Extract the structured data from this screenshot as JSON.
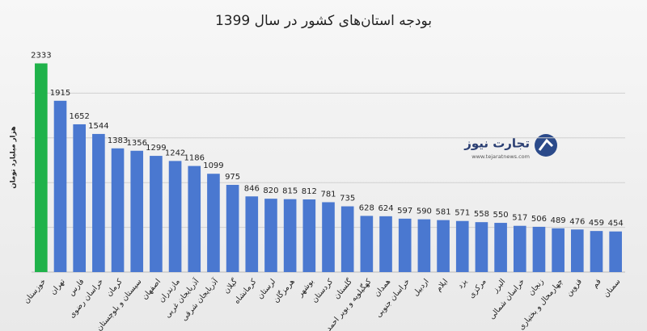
{
  "chart_data": {
    "type": "bar",
    "title": "بودجه استان‌های کشور در سال 1399",
    "y_label": "هزار میلیارد تومان",
    "categories": [
      "خوزستان",
      "تهران",
      "فارس",
      "خراسان رضوی",
      "کرمان",
      "سیستان و بلوچستان",
      "اصفهان",
      "مازندران",
      "آذربایجان غربی",
      "آذربایجان شرقی",
      "گیلان",
      "کرمانشاه",
      "لرستان",
      "هرمزگان",
      "بوشهر",
      "کردستان",
      "گلستان",
      "کهگیلویه و بویر احمد",
      "همدان",
      "خراسان جنوبی",
      "اردبیل",
      "ایلام",
      "یزد",
      "مرکزی",
      "البرز",
      "خراسان شمالی",
      "زنجان",
      "چهارمحال و بختیاری",
      "قزوین",
      "قم",
      "سمنان"
    ],
    "values": [
      2333,
      1915,
      1652,
      1544,
      1383,
      1356,
      1299,
      1242,
      1186,
      1099,
      975,
      846,
      820,
      815,
      812,
      781,
      735,
      628,
      624,
      597,
      590,
      581,
      571,
      558,
      550,
      517,
      506,
      489,
      476,
      459,
      454
    ],
    "colors": [
      "#1fb24a",
      "#4a78d0",
      "#4a78d0",
      "#4a78d0",
      "#4a78d0",
      "#4a78d0",
      "#4a78d0",
      "#4a78d0",
      "#4a78d0",
      "#4a78d0",
      "#4a78d0",
      "#4a78d0",
      "#4a78d0",
      "#4a78d0",
      "#4a78d0",
      "#4a78d0",
      "#4a78d0",
      "#4a78d0",
      "#4a78d0",
      "#4a78d0",
      "#4a78d0",
      "#4a78d0",
      "#4a78d0",
      "#4a78d0",
      "#4a78d0",
      "#4a78d0",
      "#4a78d0",
      "#4a78d0",
      "#4a78d0",
      "#4a78d0",
      "#4a78d0"
    ],
    "ylim": [
      0,
      2500
    ],
    "grid_values": [
      500,
      1000,
      1500,
      2000
    ],
    "grid": true,
    "watermark": {
      "name": "تجارت نیوز",
      "url": "www.tejaratnews.com"
    }
  }
}
